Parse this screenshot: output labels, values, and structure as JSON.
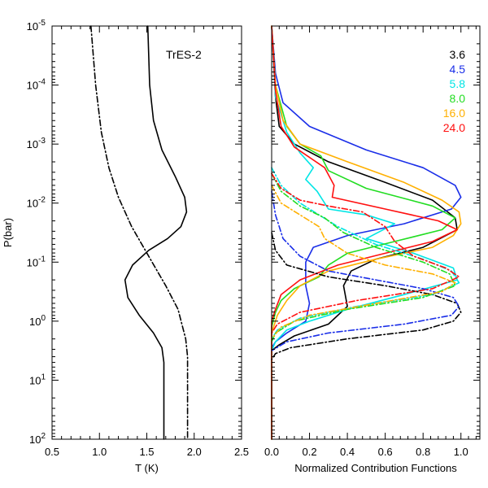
{
  "chart_data": [
    {
      "type": "line",
      "annotation": "TrES-2",
      "xlabel": "T (K)",
      "ylabel": "P(bar)",
      "xlim": [
        0.5,
        2.5
      ],
      "ylim_log10": [
        -5,
        2
      ],
      "y_reversed": true,
      "x_ticks": [
        "0.5",
        "1.0",
        "1.5",
        "2.0",
        "2.5"
      ],
      "y_tick_exponents": [
        "-5",
        "-4",
        "-3",
        "-2",
        "-1",
        "0",
        "1",
        "2"
      ],
      "y_tick_base": "10",
      "legend": "none",
      "grid": false,
      "series": [
        {
          "style": "solid",
          "color": "#000000",
          "points": [
            [
              1.51,
              -5.0
            ],
            [
              1.53,
              -4.0
            ],
            [
              1.57,
              -3.4
            ],
            [
              1.66,
              -2.9
            ],
            [
              1.8,
              -2.45
            ],
            [
              1.9,
              -2.1
            ],
            [
              1.92,
              -1.85
            ],
            [
              1.86,
              -1.6
            ],
            [
              1.72,
              -1.4
            ],
            [
              1.52,
              -1.2
            ],
            [
              1.35,
              -0.95
            ],
            [
              1.27,
              -0.7
            ],
            [
              1.3,
              -0.4
            ],
            [
              1.42,
              -0.1
            ],
            [
              1.57,
              0.2
            ],
            [
              1.66,
              0.45
            ],
            [
              1.68,
              0.7
            ],
            [
              1.68,
              1.0
            ],
            [
              1.68,
              2.0
            ]
          ]
        },
        {
          "style": "dashdot",
          "color": "#000000",
          "points": [
            [
              0.91,
              -5.0
            ],
            [
              0.96,
              -4.0
            ],
            [
              1.02,
              -3.2
            ],
            [
              1.1,
              -2.6
            ],
            [
              1.2,
              -2.1
            ],
            [
              1.34,
              -1.6
            ],
            [
              1.52,
              -1.1
            ],
            [
              1.7,
              -0.6
            ],
            [
              1.83,
              -0.2
            ],
            [
              1.91,
              0.3
            ],
            [
              1.93,
              0.6
            ],
            [
              1.93,
              2.0
            ]
          ]
        }
      ]
    },
    {
      "type": "line",
      "xlabel": "Normalized Contribution Functions",
      "ylabel": "",
      "xlim": [
        0.0,
        1.1
      ],
      "ylim_log10": [
        -5,
        2
      ],
      "y_reversed": true,
      "x_ticks": [
        "0.0",
        "0.2",
        "0.4",
        "0.6",
        "0.8",
        "1.0"
      ],
      "legend": "top-right",
      "legend_entries": [
        {
          "label": "3.6",
          "color": "#000000"
        },
        {
          "label": "4.5",
          "color": "#1a2ee8"
        },
        {
          "label": "5.8",
          "color": "#00e5e5"
        },
        {
          "label": "8.0",
          "color": "#22dd22"
        },
        {
          "label": "16.0",
          "color": "#ffb000"
        },
        {
          "label": "24.0",
          "color": "#ff1010"
        }
      ],
      "grid": false,
      "series": [
        {
          "color": "#000000",
          "style": "solid",
          "points": [
            [
              0.0,
              -5
            ],
            [
              0.02,
              -3.8
            ],
            [
              0.04,
              -3.3
            ],
            [
              0.12,
              -3.0
            ],
            [
              0.3,
              -2.7
            ],
            [
              0.6,
              -2.35
            ],
            [
              0.85,
              -2.05
            ],
            [
              0.97,
              -1.75
            ],
            [
              0.98,
              -1.55
            ],
            [
              0.8,
              -1.25
            ],
            [
              0.55,
              -1.05
            ],
            [
              0.42,
              -0.85
            ],
            [
              0.38,
              -0.6
            ],
            [
              0.4,
              -0.25
            ],
            [
              0.3,
              0.05
            ],
            [
              0.12,
              0.25
            ],
            [
              0.04,
              0.4
            ],
            [
              0.0,
              0.5
            ],
            [
              0.0,
              2
            ]
          ]
        },
        {
          "color": "#1a2ee8",
          "style": "solid",
          "points": [
            [
              0.0,
              -5
            ],
            [
              0.02,
              -4.2
            ],
            [
              0.06,
              -3.7
            ],
            [
              0.2,
              -3.3
            ],
            [
              0.5,
              -2.9
            ],
            [
              0.8,
              -2.6
            ],
            [
              0.97,
              -2.3
            ],
            [
              1.0,
              -2.1
            ],
            [
              0.95,
              -1.9
            ],
            [
              0.7,
              -1.65
            ],
            [
              0.4,
              -1.45
            ],
            [
              0.22,
              -1.25
            ],
            [
              0.18,
              -1.0
            ],
            [
              0.18,
              -0.6
            ],
            [
              0.2,
              -0.3
            ],
            [
              0.18,
              0.0
            ],
            [
              0.08,
              0.2
            ],
            [
              0.02,
              0.35
            ],
            [
              0.0,
              0.45
            ],
            [
              0.0,
              2
            ]
          ]
        },
        {
          "color": "#00e5e5",
          "style": "solid",
          "points": [
            [
              0.0,
              -5
            ],
            [
              0.02,
              -3.8
            ],
            [
              0.08,
              -3.2
            ],
            [
              0.15,
              -2.85
            ],
            [
              0.22,
              -2.6
            ],
            [
              0.18,
              -2.4
            ],
            [
              0.24,
              -2.2
            ],
            [
              0.3,
              -1.9
            ],
            [
              0.5,
              -1.8
            ],
            [
              0.65,
              -1.65
            ],
            [
              0.5,
              -1.4
            ],
            [
              0.75,
              -1.15
            ],
            [
              0.96,
              -0.9
            ],
            [
              0.98,
              -0.7
            ],
            [
              0.7,
              -0.45
            ],
            [
              0.4,
              -0.2
            ],
            [
              0.2,
              0.0
            ],
            [
              0.08,
              0.15
            ],
            [
              0.02,
              0.35
            ],
            [
              0.0,
              0.5
            ],
            [
              0.0,
              2
            ]
          ]
        },
        {
          "color": "#22dd22",
          "style": "solid",
          "points": [
            [
              0.0,
              -5
            ],
            [
              0.02,
              -4.0
            ],
            [
              0.08,
              -3.3
            ],
            [
              0.15,
              -3.0
            ],
            [
              0.26,
              -2.8
            ],
            [
              0.3,
              -2.55
            ],
            [
              0.5,
              -2.25
            ],
            [
              0.85,
              -1.95
            ],
            [
              0.97,
              -1.75
            ],
            [
              0.9,
              -1.55
            ],
            [
              0.65,
              -1.35
            ],
            [
              0.4,
              -1.15
            ],
            [
              0.3,
              -0.95
            ],
            [
              0.25,
              -0.75
            ],
            [
              0.12,
              -0.55
            ],
            [
              0.05,
              -0.35
            ],
            [
              0.02,
              -0.15
            ],
            [
              0.0,
              0.1
            ],
            [
              0.0,
              2
            ]
          ]
        },
        {
          "color": "#ffb000",
          "style": "solid",
          "points": [
            [
              0.0,
              -5
            ],
            [
              0.02,
              -4.0
            ],
            [
              0.06,
              -3.4
            ],
            [
              0.15,
              -3.0
            ],
            [
              0.4,
              -2.7
            ],
            [
              0.7,
              -2.35
            ],
            [
              0.9,
              -2.05
            ],
            [
              0.99,
              -1.85
            ],
            [
              1.0,
              -1.65
            ],
            [
              0.96,
              -1.45
            ],
            [
              0.85,
              -1.25
            ],
            [
              0.55,
              -1.05
            ],
            [
              0.3,
              -0.85
            ],
            [
              0.15,
              -0.6
            ],
            [
              0.08,
              -0.35
            ],
            [
              0.03,
              -0.1
            ],
            [
              0.0,
              0.2
            ],
            [
              0.0,
              2
            ]
          ]
        },
        {
          "color": "#ff1010",
          "style": "solid",
          "points": [
            [
              0.0,
              -5
            ],
            [
              0.02,
              -3.9
            ],
            [
              0.05,
              -3.3
            ],
            [
              0.12,
              -2.95
            ],
            [
              0.28,
              -2.6
            ],
            [
              0.33,
              -2.3
            ],
            [
              0.32,
              -2.1
            ],
            [
              0.6,
              -1.9
            ],
            [
              0.88,
              -1.7
            ],
            [
              0.98,
              -1.55
            ],
            [
              0.85,
              -1.35
            ],
            [
              0.6,
              -1.15
            ],
            [
              0.35,
              -0.95
            ],
            [
              0.15,
              -0.7
            ],
            [
              0.05,
              -0.45
            ],
            [
              0.02,
              -0.2
            ],
            [
              0.0,
              0.0
            ],
            [
              0.0,
              2
            ]
          ]
        },
        {
          "color": "#000000",
          "style": "dashdot",
          "points": [
            [
              0.0,
              -1.5
            ],
            [
              0.02,
              -1.2
            ],
            [
              0.08,
              -0.95
            ],
            [
              0.3,
              -0.75
            ],
            [
              0.6,
              -0.6
            ],
            [
              0.85,
              -0.45
            ],
            [
              0.98,
              -0.3
            ],
            [
              1.0,
              -0.15
            ],
            [
              0.96,
              0.0
            ],
            [
              0.8,
              0.15
            ],
            [
              0.4,
              0.3
            ],
            [
              0.1,
              0.45
            ],
            [
              0.02,
              0.55
            ],
            [
              0.0,
              0.65
            ]
          ]
        },
        {
          "color": "#1a2ee8",
          "style": "dashdot",
          "points": [
            [
              0.0,
              -2.2
            ],
            [
              0.02,
              -1.8
            ],
            [
              0.06,
              -1.4
            ],
            [
              0.15,
              -1.1
            ],
            [
              0.3,
              -0.85
            ],
            [
              0.55,
              -0.7
            ],
            [
              0.8,
              -0.55
            ],
            [
              0.96,
              -0.4
            ],
            [
              0.99,
              -0.25
            ],
            [
              0.95,
              -0.1
            ],
            [
              0.7,
              0.05
            ],
            [
              0.3,
              0.2
            ],
            [
              0.08,
              0.35
            ],
            [
              0.0,
              0.5
            ]
          ]
        },
        {
          "color": "#00e5e5",
          "style": "dashdot",
          "points": [
            [
              0.0,
              -2.6
            ],
            [
              0.05,
              -2.3
            ],
            [
              0.15,
              -2.0
            ],
            [
              0.25,
              -1.8
            ],
            [
              0.35,
              -1.6
            ],
            [
              0.55,
              -1.3
            ],
            [
              0.8,
              -1.05
            ],
            [
              0.95,
              -0.85
            ],
            [
              0.99,
              -0.65
            ],
            [
              0.85,
              -0.45
            ],
            [
              0.45,
              -0.25
            ],
            [
              0.15,
              -0.05
            ],
            [
              0.03,
              0.15
            ],
            [
              0.0,
              0.3
            ]
          ]
        },
        {
          "color": "#22dd22",
          "style": "dashdot",
          "points": [
            [
              0.0,
              -2.5
            ],
            [
              0.05,
              -2.2
            ],
            [
              0.15,
              -1.95
            ],
            [
              0.28,
              -1.75
            ],
            [
              0.38,
              -1.5
            ],
            [
              0.55,
              -1.25
            ],
            [
              0.8,
              -1.0
            ],
            [
              0.94,
              -0.8
            ],
            [
              0.97,
              -0.6
            ],
            [
              0.8,
              -0.4
            ],
            [
              0.4,
              -0.2
            ],
            [
              0.12,
              0.0
            ],
            [
              0.02,
              0.2
            ],
            [
              0.0,
              0.35
            ]
          ]
        },
        {
          "color": "#ffb000",
          "style": "dashdot",
          "points": [
            [
              0.0,
              -2.3
            ],
            [
              0.05,
              -2.0
            ],
            [
              0.15,
              -1.8
            ],
            [
              0.25,
              -1.6
            ],
            [
              0.28,
              -1.4
            ],
            [
              0.4,
              -1.15
            ],
            [
              0.6,
              -0.95
            ],
            [
              0.85,
              -0.8
            ],
            [
              0.97,
              -0.65
            ],
            [
              0.9,
              -0.5
            ],
            [
              0.55,
              -0.3
            ],
            [
              0.2,
              -0.1
            ],
            [
              0.05,
              0.1
            ],
            [
              0.0,
              0.3
            ]
          ]
        },
        {
          "color": "#ff1010",
          "style": "dashdot",
          "points": [
            [
              0.0,
              -2.5
            ],
            [
              0.05,
              -2.25
            ],
            [
              0.15,
              -2.05
            ],
            [
              0.3,
              -1.95
            ],
            [
              0.48,
              -1.85
            ],
            [
              0.6,
              -1.6
            ],
            [
              0.65,
              -1.35
            ],
            [
              0.75,
              -1.1
            ],
            [
              0.92,
              -0.9
            ],
            [
              0.99,
              -0.75
            ],
            [
              0.85,
              -0.55
            ],
            [
              0.45,
              -0.35
            ],
            [
              0.15,
              -0.15
            ],
            [
              0.03,
              0.05
            ],
            [
              0.0,
              0.2
            ]
          ]
        }
      ]
    }
  ]
}
